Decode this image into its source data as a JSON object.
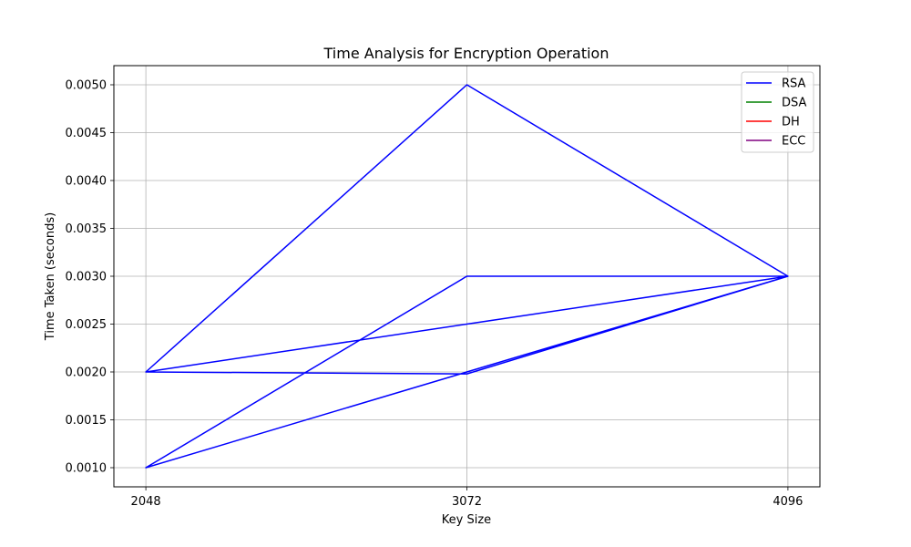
{
  "chart_data": {
    "type": "line",
    "title": "Time Analysis for Encryption Operation",
    "xlabel": "Key Size",
    "ylabel": "Time Taken (seconds)",
    "x_ticks": [
      2048,
      3072,
      4096
    ],
    "x_tick_labels": [
      "2048",
      "3072",
      "4096"
    ],
    "y_ticks": [
      0.001,
      0.0015,
      0.002,
      0.0025,
      0.003,
      0.0035,
      0.004,
      0.0045,
      0.005
    ],
    "y_tick_labels": [
      "0.0010",
      "0.0015",
      "0.0020",
      "0.0025",
      "0.0030",
      "0.0035",
      "0.0040",
      "0.0045",
      "0.0050"
    ],
    "xlim": [
      1946,
      4198
    ],
    "ylim": [
      0.0008,
      0.0052
    ],
    "grid": true,
    "legend_position": "top-right",
    "series": [
      {
        "name": "RSA",
        "color": "#0000ff",
        "x": [
          2048,
          3072,
          4096,
          2048,
          3072,
          4096,
          2048,
          3072,
          4096,
          2048,
          3072,
          4096,
          2048,
          3072,
          4096
        ],
        "y": [
          0.002,
          0.005,
          0.003,
          0.001,
          0.003,
          0.003,
          0.002,
          0.0025,
          0.003,
          0.001,
          0.002,
          0.003,
          0.002,
          0.00198,
          0.003
        ]
      },
      {
        "name": "DSA",
        "color": "#008000",
        "x": [],
        "y": []
      },
      {
        "name": "DH",
        "color": "#ff0000",
        "x": [],
        "y": []
      },
      {
        "name": "ECC",
        "color": "#800080",
        "x": [],
        "y": []
      }
    ]
  }
}
